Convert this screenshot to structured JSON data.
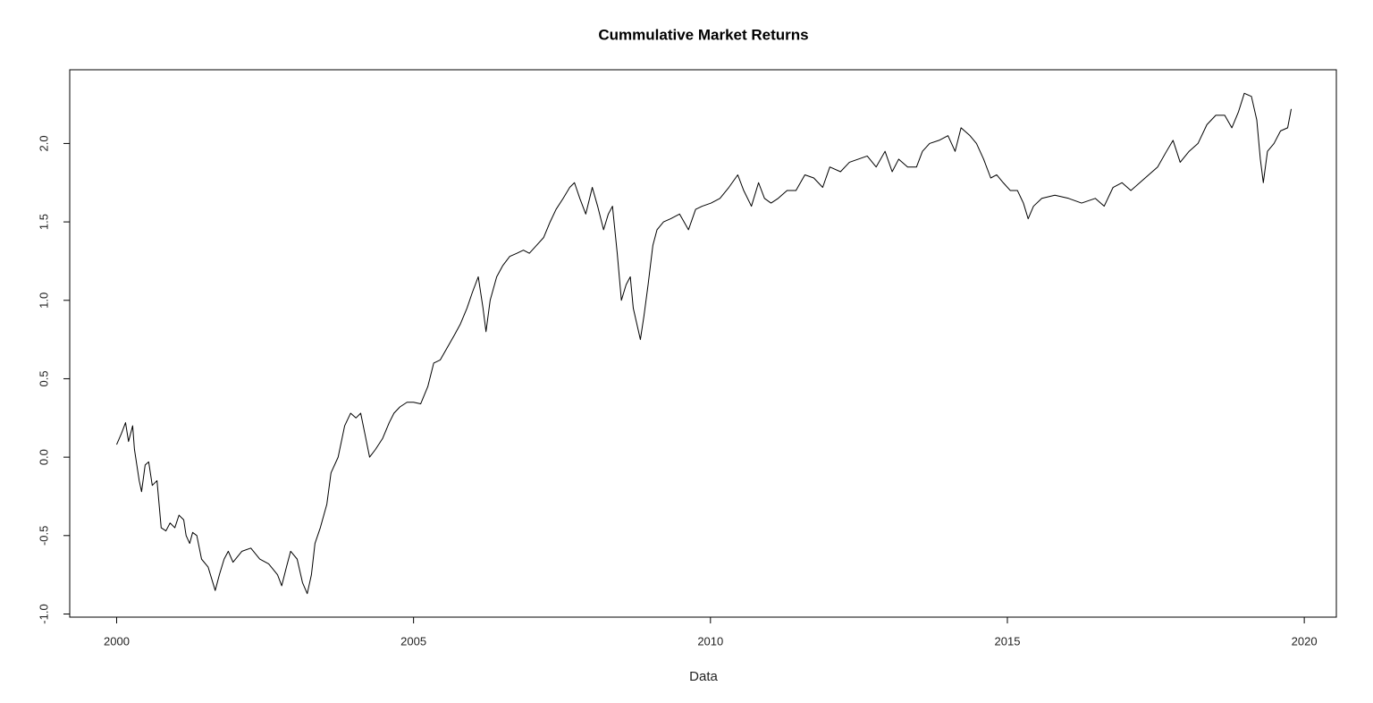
{
  "chart_data": {
    "type": "line",
    "title": "Cummulative Market Returns",
    "x_label": "Data",
    "color": "#000000",
    "x": [
      2000.0,
      2000.08,
      2000.15,
      2000.2,
      2000.27,
      2000.3,
      2000.38,
      2000.42,
      2000.48,
      2000.54,
      2000.6,
      2000.68,
      2000.75,
      2000.83,
      2000.9,
      2000.98,
      2001.05,
      2001.13,
      2001.17,
      2001.23,
      2001.28,
      2001.35,
      2001.43,
      2001.54,
      2001.66,
      2001.73,
      2001.81,
      2001.88,
      2001.96,
      2002.11,
      2002.26,
      2002.41,
      2002.56,
      2002.71,
      2002.78,
      2002.86,
      2002.93,
      2003.04,
      2003.13,
      2003.21,
      2003.28,
      2003.34,
      2003.43,
      2003.54,
      2003.61,
      2003.73,
      2003.84,
      2003.94,
      2004.03,
      2004.11,
      2004.18,
      2004.26,
      2004.36,
      2004.48,
      2004.59,
      2004.67,
      2004.77,
      2004.89,
      2005.0,
      2005.12,
      2005.24,
      2005.34,
      2005.45,
      2005.57,
      2005.69,
      2005.79,
      2005.9,
      2005.99,
      2006.09,
      2006.17,
      2006.22,
      2006.29,
      2006.4,
      2006.5,
      2006.62,
      2006.74,
      2006.85,
      2006.95,
      2007.07,
      2007.19,
      2007.3,
      2007.4,
      2007.52,
      2007.63,
      2007.71,
      2007.8,
      2007.9,
      2008.01,
      2008.1,
      2008.2,
      2008.28,
      2008.35,
      2008.43,
      2008.5,
      2008.58,
      2008.65,
      2008.7,
      2008.76,
      2008.82,
      2008.88,
      2008.95,
      2009.03,
      2009.1,
      2009.21,
      2009.33,
      2009.48,
      2009.63,
      2009.75,
      2009.86,
      2010.01,
      2010.16,
      2010.31,
      2010.46,
      2010.56,
      2010.69,
      2010.81,
      2010.91,
      2011.02,
      2011.14,
      2011.29,
      2011.44,
      2011.59,
      2011.74,
      2011.89,
      2012.01,
      2012.19,
      2012.34,
      2012.49,
      2012.64,
      2012.79,
      2012.94,
      2013.06,
      2013.17,
      2013.32,
      2013.47,
      2013.57,
      2013.69,
      2013.85,
      2014.0,
      2014.12,
      2014.22,
      2014.37,
      2014.48,
      2014.6,
      2014.72,
      2014.82,
      2014.93,
      2015.05,
      2015.17,
      2015.27,
      2015.35,
      2015.44,
      2015.58,
      2015.8,
      2016.03,
      2016.25,
      2016.48,
      2016.63,
      2016.78,
      2016.93,
      2017.08,
      2017.23,
      2017.38,
      2017.53,
      2017.68,
      2017.79,
      2017.91,
      2018.06,
      2018.21,
      2018.36,
      2018.51,
      2018.66,
      2018.78,
      2018.89,
      2018.99,
      2019.11,
      2019.2,
      2019.26,
      2019.31,
      2019.38,
      2019.49,
      2019.6,
      2019.72,
      2019.78
    ],
    "values": [
      0.08,
      0.15,
      0.22,
      0.1,
      0.2,
      0.05,
      -0.15,
      -0.22,
      -0.05,
      -0.03,
      -0.18,
      -0.15,
      -0.45,
      -0.47,
      -0.42,
      -0.45,
      -0.37,
      -0.4,
      -0.5,
      -0.55,
      -0.48,
      -0.5,
      -0.65,
      -0.7,
      -0.85,
      -0.75,
      -0.65,
      -0.6,
      -0.67,
      -0.6,
      -0.58,
      -0.65,
      -0.68,
      -0.75,
      -0.82,
      -0.7,
      -0.6,
      -0.65,
      -0.8,
      -0.87,
      -0.75,
      -0.55,
      -0.45,
      -0.3,
      -0.1,
      0.0,
      0.2,
      0.28,
      0.25,
      0.28,
      0.15,
      0.0,
      0.05,
      0.12,
      0.22,
      0.28,
      0.32,
      0.35,
      0.35,
      0.34,
      0.45,
      0.6,
      0.62,
      0.7,
      0.78,
      0.85,
      0.95,
      1.05,
      1.15,
      0.95,
      0.8,
      1.0,
      1.15,
      1.22,
      1.28,
      1.3,
      1.32,
      1.3,
      1.35,
      1.4,
      1.5,
      1.58,
      1.65,
      1.72,
      1.75,
      1.65,
      1.55,
      1.72,
      1.6,
      1.45,
      1.55,
      1.6,
      1.3,
      1.0,
      1.1,
      1.15,
      0.95,
      0.85,
      0.75,
      0.9,
      1.1,
      1.35,
      1.45,
      1.5,
      1.52,
      1.55,
      1.45,
      1.58,
      1.6,
      1.62,
      1.65,
      1.72,
      1.8,
      1.7,
      1.6,
      1.75,
      1.65,
      1.62,
      1.65,
      1.7,
      1.7,
      1.8,
      1.78,
      1.72,
      1.85,
      1.82,
      1.88,
      1.9,
      1.92,
      1.85,
      1.95,
      1.82,
      1.9,
      1.85,
      1.85,
      1.95,
      2.0,
      2.02,
      2.05,
      1.95,
      2.1,
      2.05,
      2.0,
      1.9,
      1.78,
      1.8,
      1.75,
      1.7,
      1.7,
      1.62,
      1.52,
      1.6,
      1.65,
      1.67,
      1.65,
      1.62,
      1.65,
      1.6,
      1.72,
      1.75,
      1.7,
      1.75,
      1.8,
      1.85,
      1.95,
      2.02,
      1.88,
      1.95,
      2.0,
      2.12,
      2.18,
      2.18,
      2.1,
      2.2,
      2.32,
      2.3,
      2.15,
      1.9,
      1.75,
      1.95,
      2.0,
      2.08,
      2.1,
      2.22
    ],
    "xlim": [
      1999.21,
      2020.54
    ],
    "xticks": [
      2000,
      2005,
      2010,
      2015,
      2020
    ],
    "ylim": [
      -1.02,
      2.47
    ],
    "yticks": [
      {
        "value": -1.0,
        "label": "-1.0"
      },
      -0.5,
      {
        "value": 0.0,
        "label": "0.0"
      },
      0.5,
      {
        "value": 1.0,
        "label": "1.0"
      },
      1.5,
      {
        "value": 2.0,
        "label": "2.0"
      }
    ]
  }
}
